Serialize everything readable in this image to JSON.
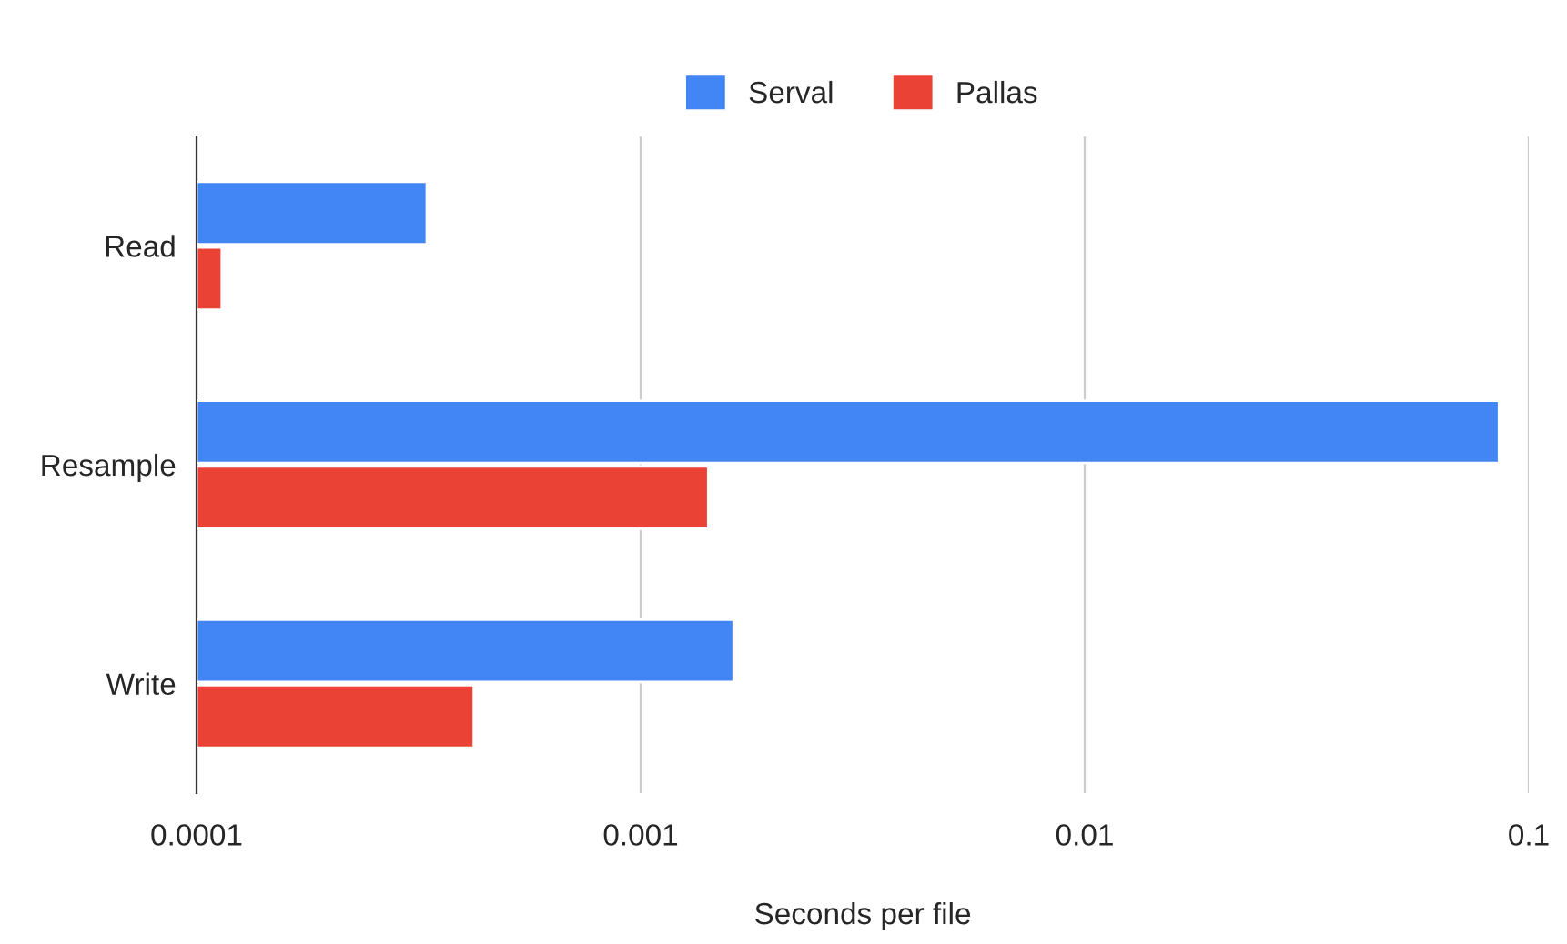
{
  "chart_data": {
    "type": "bar",
    "orientation": "horizontal",
    "categories": [
      "Read",
      "Resample",
      "Write"
    ],
    "series": [
      {
        "name": "Serval",
        "color": "#4285f4",
        "values": [
          0.00033,
          0.0857,
          0.00162
        ]
      },
      {
        "name": "Pallas",
        "color": "#ea4335",
        "values": [
          0.000114,
          0.00142,
          0.000421
        ]
      }
    ],
    "xlabel": "Seconds per file",
    "log": "x",
    "xlim": [
      0.0001,
      0.1
    ],
    "xticks": [
      0.0001,
      0.001,
      0.01,
      0.1
    ],
    "grid": "x",
    "legend": "top"
  }
}
